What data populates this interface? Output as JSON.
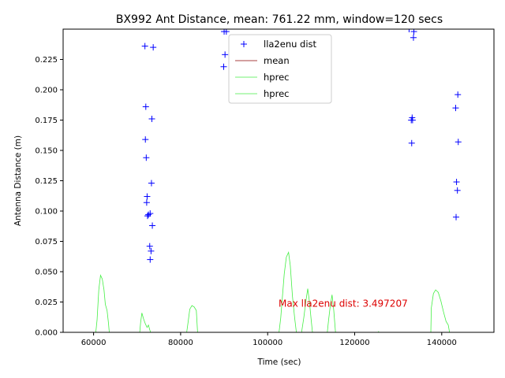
{
  "chart_data": {
    "type": "scatter",
    "title": "BX992 Ant Distance, mean: 761.22 mm, window=120 secs",
    "xlabel": "Time (sec)",
    "ylabel": "Antenna Distance (m)",
    "xlim": [
      53000,
      152000
    ],
    "ylim": [
      0.0,
      0.25
    ],
    "xticks": [
      60000,
      80000,
      100000,
      120000,
      140000
    ],
    "xtick_labels": [
      "60000",
      "80000",
      "100000",
      "120000",
      "140000"
    ],
    "yticks": [
      0.0,
      0.025,
      0.05,
      0.075,
      0.1,
      0.125,
      0.15,
      0.175,
      0.2,
      0.225
    ],
    "ytick_labels": [
      "0.000",
      "0.025",
      "0.050",
      "0.075",
      "0.100",
      "0.125",
      "0.150",
      "0.175",
      "0.200",
      "0.225"
    ],
    "grid": false,
    "legend_position": "upper-center",
    "series": [
      {
        "name": "lla2enu dist",
        "kind": "marker",
        "marker": "+",
        "color": "#0000ff",
        "points": [
          [
            71800,
            0.236
          ],
          [
            73700,
            0.235
          ],
          [
            72000,
            0.186
          ],
          [
            73400,
            0.176
          ],
          [
            71900,
            0.159
          ],
          [
            72100,
            0.144
          ],
          [
            73300,
            0.123
          ],
          [
            72300,
            0.112
          ],
          [
            72200,
            0.107
          ],
          [
            73000,
            0.098
          ],
          [
            72600,
            0.097
          ],
          [
            72400,
            0.096
          ],
          [
            73500,
            0.088
          ],
          [
            72900,
            0.071
          ],
          [
            73200,
            0.067
          ],
          [
            73000,
            0.06
          ],
          [
            90000,
            0.248
          ],
          [
            90500,
            0.248
          ],
          [
            90200,
            0.229
          ],
          [
            89900,
            0.219
          ],
          [
            132500,
            0.25
          ],
          [
            133600,
            0.248
          ],
          [
            133500,
            0.243
          ],
          [
            133200,
            0.177
          ],
          [
            133000,
            0.175
          ],
          [
            133300,
            0.175
          ],
          [
            133100,
            0.156
          ],
          [
            143700,
            0.196
          ],
          [
            143200,
            0.185
          ],
          [
            143800,
            0.157
          ],
          [
            143400,
            0.124
          ],
          [
            143600,
            0.117
          ],
          [
            143300,
            0.095
          ]
        ]
      },
      {
        "name": "mean",
        "kind": "line",
        "color": "#8b0000",
        "points": []
      },
      {
        "name": "hprec",
        "kind": "line",
        "color": "#44ee44",
        "segments": [
          [
            [
              60500,
              0.0
            ],
            [
              60800,
              0.01
            ],
            [
              61200,
              0.035
            ],
            [
              61600,
              0.047
            ],
            [
              62000,
              0.044
            ],
            [
              62400,
              0.035
            ],
            [
              62700,
              0.023
            ],
            [
              63100,
              0.018
            ],
            [
              63400,
              0.008
            ],
            [
              63600,
              0.0
            ]
          ],
          [
            [
              70600,
              0.0
            ],
            [
              70800,
              0.008
            ],
            [
              71100,
              0.016
            ],
            [
              71500,
              0.011
            ],
            [
              71900,
              0.007
            ],
            [
              72300,
              0.004
            ],
            [
              72600,
              0.006
            ],
            [
              72900,
              0.002
            ],
            [
              73100,
              0.0
            ]
          ],
          [
            [
              81400,
              0.0
            ],
            [
              81700,
              0.008
            ],
            [
              82100,
              0.019
            ],
            [
              82600,
              0.022
            ],
            [
              83100,
              0.021
            ],
            [
              83600,
              0.018
            ],
            [
              83900,
              0.0
            ]
          ],
          [
            [
              102600,
              0.0
            ],
            [
              103000,
              0.012
            ],
            [
              103400,
              0.03
            ],
            [
              103800,
              0.048
            ],
            [
              104300,
              0.062
            ],
            [
              104800,
              0.066
            ],
            [
              105200,
              0.055
            ],
            [
              105700,
              0.03
            ],
            [
              106200,
              0.012
            ],
            [
              106600,
              0.0
            ]
          ],
          [
            [
              107800,
              0.0
            ],
            [
              108300,
              0.012
            ],
            [
              108800,
              0.026
            ],
            [
              109200,
              0.036
            ],
            [
              109600,
              0.025
            ],
            [
              110000,
              0.01
            ],
            [
              110300,
              0.0
            ]
          ],
          [
            [
              113700,
              0.0
            ],
            [
              114000,
              0.01
            ],
            [
              114400,
              0.022
            ],
            [
              114800,
              0.031
            ],
            [
              115200,
              0.018
            ],
            [
              115600,
              0.0
            ]
          ],
          [
            [
              125500,
              0.0
            ],
            [
              125500,
              0.001
            ]
          ],
          [
            [
              137500,
              0.0
            ],
            [
              137600,
              0.02
            ],
            [
              138100,
              0.032
            ],
            [
              138600,
              0.035
            ],
            [
              139200,
              0.033
            ],
            [
              139800,
              0.026
            ],
            [
              140400,
              0.017
            ],
            [
              141000,
              0.009
            ],
            [
              141500,
              0.006
            ],
            [
              141800,
              0.0
            ]
          ]
        ]
      },
      {
        "name": "hprec",
        "kind": "line",
        "color": "#44ee44",
        "segments": []
      }
    ],
    "annotations": [
      {
        "text": "Max lla2enu dist: 3.497207",
        "x": 102500,
        "y": 0.021,
        "color": "#dd0000"
      }
    ]
  }
}
